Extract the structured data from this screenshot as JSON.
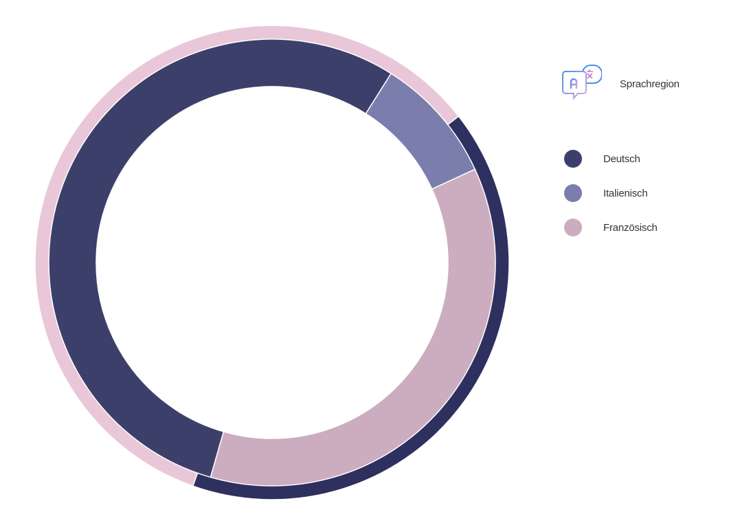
{
  "chart_data": {
    "type": "pie",
    "style": "donut-with-outer-ring",
    "legend_title": "Sprachregion",
    "legend_icon": "translate-icon",
    "legend_position": "right",
    "slices": [
      {
        "label": "Deutsch",
        "value": 54.5,
        "color": "#3d3f6b"
      },
      {
        "label": "Italienisch",
        "value": 9.2,
        "color": "#7b7dac"
      },
      {
        "label": "Französisch",
        "value": 36.3,
        "color": "#ccadbf"
      }
    ],
    "outer_ring": [
      {
        "value": 59.0,
        "color": "#e9c7d8"
      },
      {
        "value": 41.0,
        "color": "#2e3060"
      }
    ]
  }
}
